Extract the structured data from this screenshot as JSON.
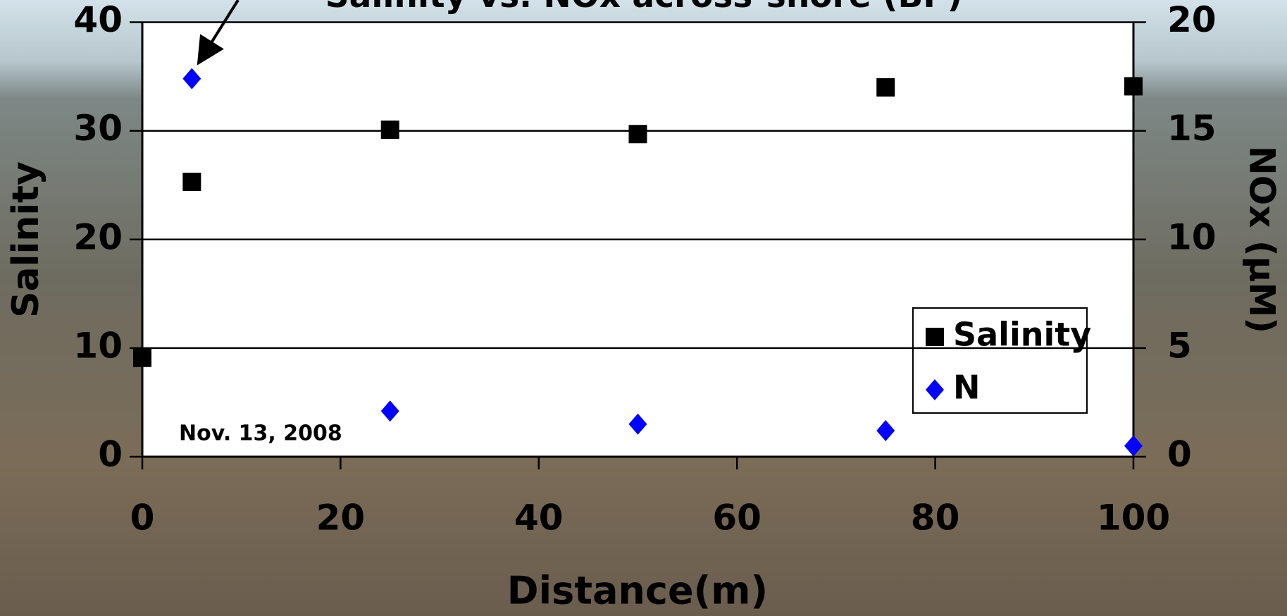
{
  "chart_data": {
    "type": "scatter",
    "title": "Salinity vs. NOx across-shore (BP)",
    "annotation": "Nov. 13, 2008",
    "x_label": "Distance(m)",
    "y_label": "Salinity",
    "y2_label": "NOx (μM)",
    "x": [
      0,
      5,
      25,
      50,
      75,
      100
    ],
    "series": [
      {
        "name": "Salinity",
        "color": "#000000",
        "marker": "square",
        "values": [
          9.1,
          25.3,
          30.1,
          29.7,
          34.0,
          34.1
        ]
      },
      {
        "name": "N",
        "color": "#0000ff",
        "marker": "diamond",
        "axis": "y2",
        "values": [
          null,
          17.4,
          2.1,
          1.5,
          1.2,
          0.5
        ]
      }
    ],
    "xlim": [
      0,
      100
    ],
    "xticks": [
      0,
      20,
      40,
      60,
      80,
      100
    ],
    "ylim": [
      0,
      40
    ],
    "yticks": [
      0,
      10,
      20,
      30,
      40
    ],
    "y2lim": [
      0,
      20
    ],
    "y2ticks": [
      0,
      5,
      10,
      15,
      20
    ],
    "grid": true,
    "legend": "right"
  }
}
